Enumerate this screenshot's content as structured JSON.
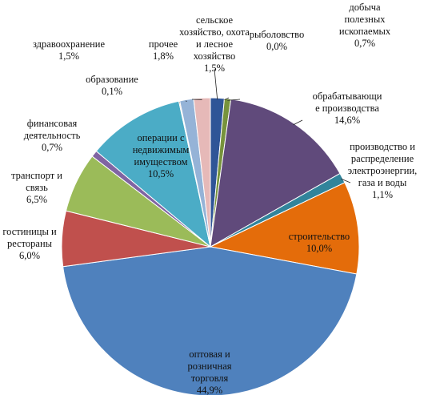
{
  "chart_data": {
    "type": "pie",
    "title": "",
    "unit": "%",
    "slices": [
      {
        "lines": [
          "сельское",
          "хозяйство, охота",
          "и лесное",
          "хозяйство"
        ],
        "value_label": "1,5%",
        "value": 1.5,
        "color": "#2F5597"
      },
      {
        "lines": [
          "рыболовство"
        ],
        "value_label": "0,0%",
        "value": 0.0,
        "color": "#C0504D"
      },
      {
        "lines": [
          "добыча",
          "полезных",
          "ископаемых"
        ],
        "value_label": "0,7%",
        "value": 0.7,
        "color": "#77933C"
      },
      {
        "lines": [
          "обрабатывающи",
          "е производства"
        ],
        "value_label": "14,6%",
        "value": 14.6,
        "color": "#604A7B"
      },
      {
        "lines": [
          "производство и",
          "распределение",
          "электроэнергии,",
          "газа и воды"
        ],
        "value_label": "1,1%",
        "value": 1.1,
        "color": "#31849B"
      },
      {
        "lines": [
          "строительство"
        ],
        "value_label": "10,0%",
        "value": 10.0,
        "color": "#E46C0A"
      },
      {
        "lines": [
          "оптовая и",
          "розничная",
          "торговля"
        ],
        "value_label": "44,9%",
        "value": 44.9,
        "color": "#4F81BD"
      },
      {
        "lines": [
          "гостиницы и",
          "рестораны"
        ],
        "value_label": "6,0%",
        "value": 6.0,
        "color": "#C0504D"
      },
      {
        "lines": [
          "транспорт и",
          "связь"
        ],
        "value_label": "6,5%",
        "value": 6.5,
        "color": "#9BBB59"
      },
      {
        "lines": [
          "финансовая",
          "деятельность"
        ],
        "value_label": "0,7%",
        "value": 0.7,
        "color": "#8064A2"
      },
      {
        "lines": [
          "операции с",
          "недвижимым",
          "имуществом"
        ],
        "value_label": "10,5%",
        "value": 10.5,
        "color": "#4BACC6"
      },
      {
        "lines": [
          "образование"
        ],
        "value_label": "0,1%",
        "value": 0.1,
        "color": "#F79646"
      },
      {
        "lines": [
          "здравоохранение"
        ],
        "value_label": "1,5%",
        "value": 1.5,
        "color": "#95B3D7"
      },
      {
        "lines": [
          "прочее"
        ],
        "value_label": "1,8%",
        "value": 1.8,
        "color": "#E6B9B8"
      }
    ]
  }
}
